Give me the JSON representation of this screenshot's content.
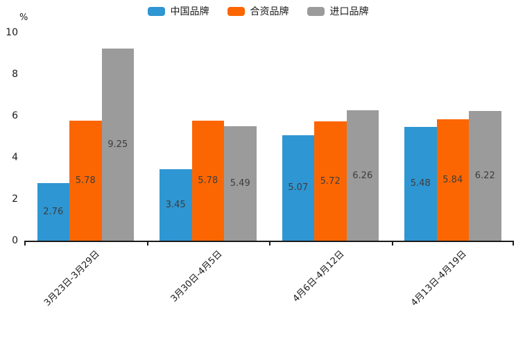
{
  "chart_data": {
    "type": "bar",
    "title": "",
    "unit_label": "%",
    "categories": [
      "3月23日-3月29日",
      "3月30日-4月5日",
      "4月6日-4月12日",
      "4月13日-4月19日"
    ],
    "series": [
      {
        "name": "中国品牌",
        "color": "#2E96D2",
        "values": [
          2.76,
          3.45,
          5.07,
          5.48
        ]
      },
      {
        "name": "合资品牌",
        "color": "#FC6602",
        "values": [
          5.78,
          5.78,
          5.72,
          5.84
        ]
      },
      {
        "name": "进口品牌",
        "color": "#9B9B9B",
        "values": [
          9.25,
          5.49,
          6.26,
          6.22
        ]
      }
    ],
    "ylim": [
      0,
      10
    ],
    "yticks": [
      0,
      2,
      4,
      6,
      8,
      10
    ],
    "grid": false,
    "legend_position": "top-center",
    "value_labels": "inside-center",
    "axis_color": "#1a1a1a"
  }
}
